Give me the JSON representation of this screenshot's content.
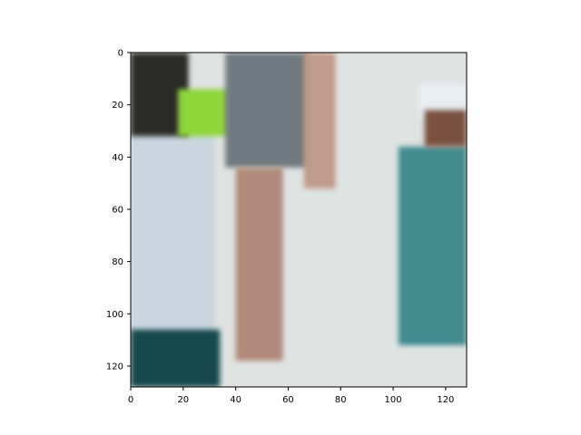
{
  "chart_data": {
    "type": "image",
    "title": "",
    "xlabel": "",
    "ylabel": "",
    "xlim": [
      0,
      128
    ],
    "ylim": [
      128,
      0
    ],
    "grid": false,
    "x_ticks": [
      0,
      20,
      40,
      60,
      80,
      100,
      120
    ],
    "y_ticks": [
      0,
      20,
      40,
      60,
      80,
      100,
      120
    ],
    "image_content": {
      "description_scene": "street photo crop",
      "regions": [
        {
          "name": "pavement",
          "color": "#dfe3e2",
          "x": [
            0,
            128
          ],
          "y": [
            0,
            128
          ]
        },
        {
          "name": "boy-left-shirt",
          "color": "#c9d6df",
          "x": [
            0,
            32
          ],
          "y": [
            30,
            108
          ]
        },
        {
          "name": "boy-left-head",
          "color": "#2b2a25",
          "x": [
            0,
            22
          ],
          "y": [
            0,
            32
          ]
        },
        {
          "name": "boy-left-shorts",
          "color": "#14484e",
          "x": [
            0,
            34
          ],
          "y": [
            106,
            128
          ]
        },
        {
          "name": "green-fruit",
          "color": "#8fd63a",
          "x": [
            18,
            38
          ],
          "y": [
            14,
            32
          ]
        },
        {
          "name": "woman-dress",
          "color": "#6f7a80",
          "x": [
            36,
            68
          ],
          "y": [
            0,
            44
          ]
        },
        {
          "name": "woman-legs",
          "color": "#b08a7a",
          "x": [
            40,
            58
          ],
          "y": [
            44,
            118
          ]
        },
        {
          "name": "woman-arm",
          "color": "#c09a8a",
          "x": [
            66,
            78
          ],
          "y": [
            0,
            52
          ]
        },
        {
          "name": "boy-right-shirt",
          "color": "#3f8c8f",
          "x": [
            102,
            128
          ],
          "y": [
            36,
            112
          ]
        },
        {
          "name": "boy-right-cap",
          "color": "#e7eef3",
          "x": [
            110,
            128
          ],
          "y": [
            12,
            26
          ]
        },
        {
          "name": "boy-right-face",
          "color": "#7a5140",
          "x": [
            112,
            128
          ],
          "y": [
            22,
            36
          ]
        }
      ]
    }
  }
}
